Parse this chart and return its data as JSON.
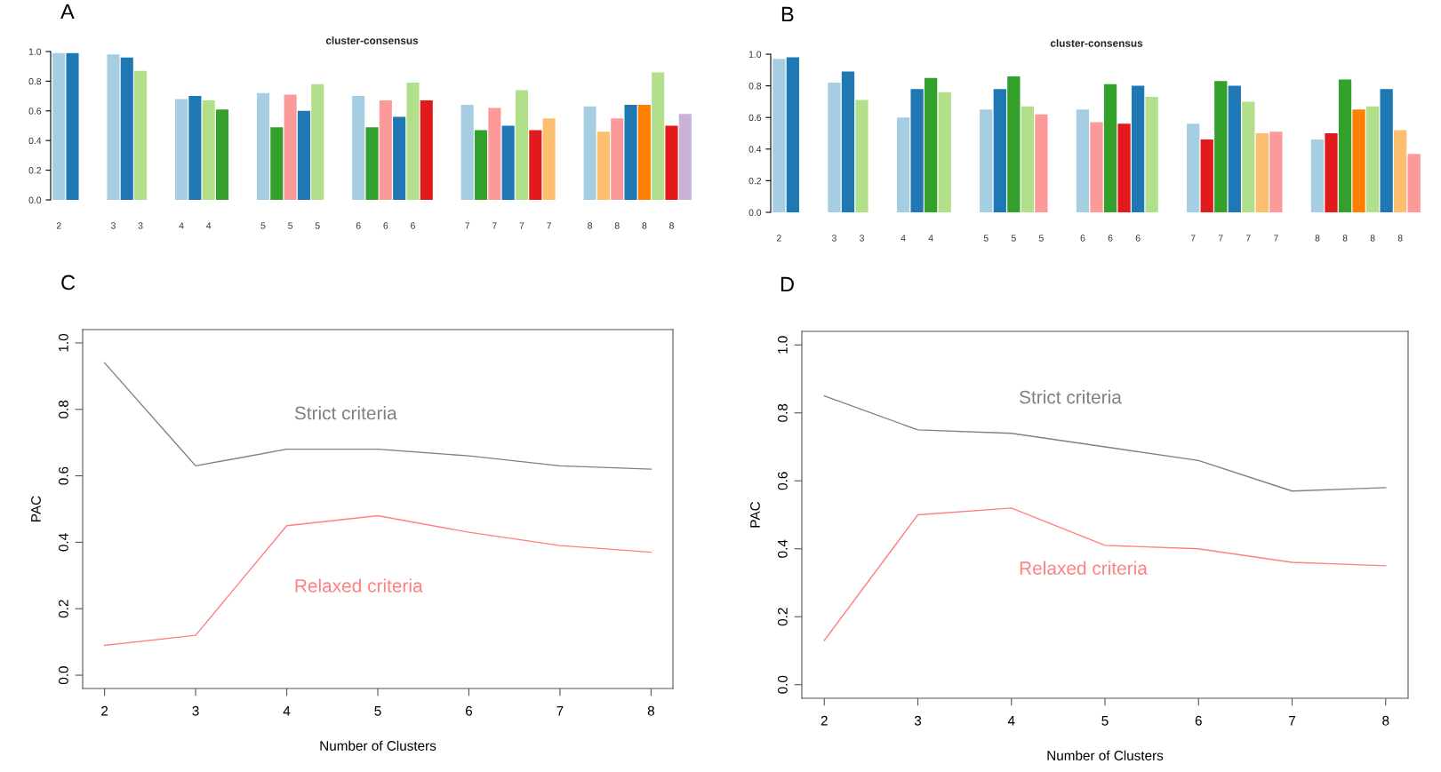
{
  "chart_data": [
    {
      "type": "bar",
      "title": "cluster-consensus",
      "annotations": [
        "A"
      ],
      "categories": [
        "2",
        null,
        null,
        null,
        "3",
        null,
        "3",
        null,
        null,
        "4",
        null,
        "4",
        null,
        null,
        null,
        "5",
        null,
        "5",
        null,
        "5",
        null,
        null,
        "6",
        null,
        "6",
        null,
        "6",
        null,
        null,
        null,
        "7",
        null,
        "7",
        null,
        "7",
        null,
        "7",
        null,
        null,
        "8",
        null,
        "8",
        null,
        "8",
        null,
        "8",
        null
      ],
      "values": [
        0.99,
        0.99,
        null,
        null,
        0.98,
        0.96,
        0.87,
        null,
        null,
        0.68,
        0.7,
        0.67,
        0.61,
        null,
        null,
        0.72,
        0.49,
        0.71,
        0.6,
        0.78,
        null,
        null,
        0.7,
        0.49,
        0.67,
        0.56,
        0.79,
        0.67,
        null,
        null,
        0.64,
        0.47,
        0.62,
        0.5,
        0.74,
        0.47,
        0.55,
        null,
        null,
        0.63,
        0.46,
        0.55,
        0.64,
        0.64,
        0.86,
        0.5,
        0.58
      ],
      "colors": [
        "#a6cee3",
        "#1f78b4",
        null,
        null,
        "#a6cee3",
        "#1f78b4",
        "#b2df8a",
        null,
        null,
        "#a6cee3",
        "#1f78b4",
        "#b2df8a",
        "#33a02c",
        null,
        null,
        "#a6cee3",
        "#33a02c",
        "#fb9a99",
        "#1f78b4",
        "#b2df8a",
        null,
        null,
        "#a6cee3",
        "#33a02c",
        "#fb9a99",
        "#1f78b4",
        "#b2df8a",
        "#e31a1c",
        null,
        null,
        "#a6cee3",
        "#33a02c",
        "#fb9a99",
        "#1f78b4",
        "#b2df8a",
        "#e31a1c",
        "#fdbf6f",
        null,
        null,
        "#a6cee3",
        "#fdbf6f",
        "#fb9a99",
        "#1f78b4",
        "#ff7f00",
        "#b2df8a",
        "#e31a1c",
        "#cab2d6"
      ],
      "ylim": [
        0,
        1
      ],
      "yticks": [
        {
          "value": 0,
          "label": "0.0"
        },
        {
          "value": 0.2,
          "label": "0.2"
        },
        {
          "value": 0.4,
          "label": "0.4"
        },
        {
          "value": 0.6,
          "label": "0.6"
        },
        {
          "value": 0.8,
          "label": "0.8"
        },
        {
          "value": 1,
          "label": "1.0"
        }
      ]
    },
    {
      "type": "bar",
      "title": "cluster-consensus",
      "annotations": [
        "B"
      ],
      "categories": [
        "2",
        null,
        null,
        null,
        "3",
        null,
        "3",
        null,
        null,
        "4",
        null,
        "4",
        null,
        null,
        null,
        "5",
        null,
        "5",
        null,
        "5",
        null,
        null,
        "6",
        null,
        "6",
        null,
        "6",
        null,
        null,
        null,
        "7",
        null,
        "7",
        null,
        "7",
        null,
        "7",
        null,
        null,
        "8",
        null,
        "8",
        null,
        "8",
        null,
        "8",
        null
      ],
      "values": [
        0.97,
        0.98,
        null,
        null,
        0.82,
        0.89,
        0.71,
        null,
        null,
        0.6,
        0.78,
        0.85,
        0.76,
        null,
        null,
        0.65,
        0.78,
        0.86,
        0.67,
        0.62,
        null,
        null,
        0.65,
        0.57,
        0.81,
        0.56,
        0.8,
        0.73,
        null,
        null,
        0.56,
        0.46,
        0.83,
        0.8,
        0.7,
        0.5,
        0.51,
        null,
        null,
        0.46,
        0.5,
        0.84,
        0.65,
        0.67,
        0.78,
        0.52,
        0.37
      ],
      "colors": [
        "#a6cee3",
        "#1f78b4",
        null,
        null,
        "#a6cee3",
        "#1f78b4",
        "#b2df8a",
        null,
        null,
        "#a6cee3",
        "#1f78b4",
        "#33a02c",
        "#b2df8a",
        null,
        null,
        "#a6cee3",
        "#1f78b4",
        "#33a02c",
        "#b2df8a",
        "#fb9a99",
        null,
        null,
        "#a6cee3",
        "#fb9a99",
        "#33a02c",
        "#e31a1c",
        "#1f78b4",
        "#b2df8a",
        null,
        null,
        "#a6cee3",
        "#e31a1c",
        "#33a02c",
        "#1f78b4",
        "#b2df8a",
        "#fdbf6f",
        "#fb9a99",
        null,
        null,
        "#a6cee3",
        "#e31a1c",
        "#33a02c",
        "#ff7f00",
        "#b2df8a",
        "#1f78b4",
        "#fdbf6f",
        "#fb9a99"
      ],
      "ylim": [
        0,
        1
      ],
      "yticks": [
        {
          "value": 0,
          "label": "0.0"
        },
        {
          "value": 0.2,
          "label": "0.2"
        },
        {
          "value": 0.4,
          "label": "0.4"
        },
        {
          "value": 0.6,
          "label": "0.6"
        },
        {
          "value": 0.8,
          "label": "0.8"
        },
        {
          "value": 1,
          "label": "1.0"
        }
      ]
    },
    {
      "type": "line",
      "annotations": [
        "C"
      ],
      "xlabel": "Number of Clusters",
      "ylabel": "PAC",
      "x": [
        2,
        3,
        4,
        5,
        6,
        7,
        8
      ],
      "series": [
        {
          "name": "Strict criteria",
          "color": "#808080",
          "values": [
            0.94,
            0.63,
            0.68,
            0.68,
            0.66,
            0.63,
            0.62
          ]
        },
        {
          "name": "Relaxed criteria",
          "color": "#ff8080",
          "values": [
            0.09,
            0.12,
            0.45,
            0.48,
            0.43,
            0.39,
            0.37
          ]
        }
      ],
      "xlim": [
        1.76,
        8.24
      ],
      "ylim": [
        -0.04,
        1.04
      ],
      "xticks": [
        2,
        3,
        4,
        5,
        6,
        7,
        8
      ],
      "yticks": [
        {
          "value": 0,
          "label": "0.0"
        },
        {
          "value": 0.2,
          "label": "0.2"
        },
        {
          "value": 0.4,
          "label": "0.4"
        },
        {
          "value": 0.6,
          "label": "0.6"
        },
        {
          "value": 0.8,
          "label": "0.8"
        },
        {
          "value": 1,
          "label": "1.0"
        }
      ]
    },
    {
      "type": "line",
      "annotations": [
        "D"
      ],
      "xlabel": "Number of Clusters",
      "ylabel": "PAC",
      "x": [
        2,
        3,
        4,
        5,
        6,
        7,
        8
      ],
      "series": [
        {
          "name": "Strict criteria",
          "color": "#808080",
          "values": [
            0.85,
            0.75,
            0.74,
            0.7,
            0.66,
            0.57,
            0.58
          ]
        },
        {
          "name": "Relaxed criteria",
          "color": "#ff8080",
          "values": [
            0.13,
            0.5,
            0.52,
            0.41,
            0.4,
            0.36,
            0.35
          ]
        }
      ],
      "xlim": [
        1.76,
        8.24
      ],
      "ylim": [
        -0.04,
        1.04
      ],
      "xticks": [
        2,
        3,
        4,
        5,
        6,
        7,
        8
      ],
      "yticks": [
        {
          "value": 0,
          "label": "0.0"
        },
        {
          "value": 0.2,
          "label": "0.2"
        },
        {
          "value": 0.4,
          "label": "0.4"
        },
        {
          "value": 0.6,
          "label": "0.6"
        },
        {
          "value": 0.8,
          "label": "0.8"
        },
        {
          "value": 1,
          "label": "1.0"
        }
      ]
    }
  ]
}
